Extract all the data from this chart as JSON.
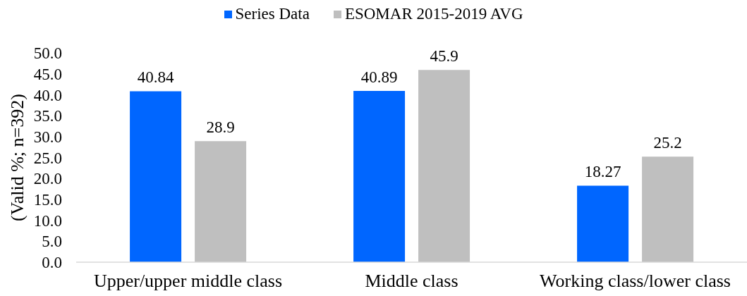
{
  "chart_data": {
    "type": "bar",
    "categories": [
      "Upper/upper middle class",
      "Middle class",
      "Working class/lower class"
    ],
    "series": [
      {
        "name": "Series Data",
        "color": "#0066ff",
        "values": [
          40.84,
          40.89,
          18.27
        ]
      },
      {
        "name": "ESOMAR 2015-2019 AVG",
        "color": "#bfbfbf",
        "values": [
          28.9,
          45.9,
          25.2
        ]
      }
    ],
    "ylabel": "(Valid %; n=392)",
    "ylim": [
      0,
      50
    ],
    "yticks": [
      {
        "value": 0,
        "label": "0.0"
      },
      {
        "value": 5,
        "label": "5.0"
      },
      {
        "value": 10,
        "label": "10.0"
      },
      {
        "value": 15,
        "label": "15.0"
      },
      {
        "value": 20,
        "label": "20.0"
      },
      {
        "value": 25,
        "label": "25.0"
      },
      {
        "value": 30,
        "label": "30.0"
      },
      {
        "value": 35,
        "label": "35.0"
      },
      {
        "value": 40,
        "label": "40.0"
      },
      {
        "value": 45,
        "label": "45.0"
      },
      {
        "value": 50,
        "label": "50.0"
      }
    ],
    "data_labels": true,
    "legend": "top"
  }
}
